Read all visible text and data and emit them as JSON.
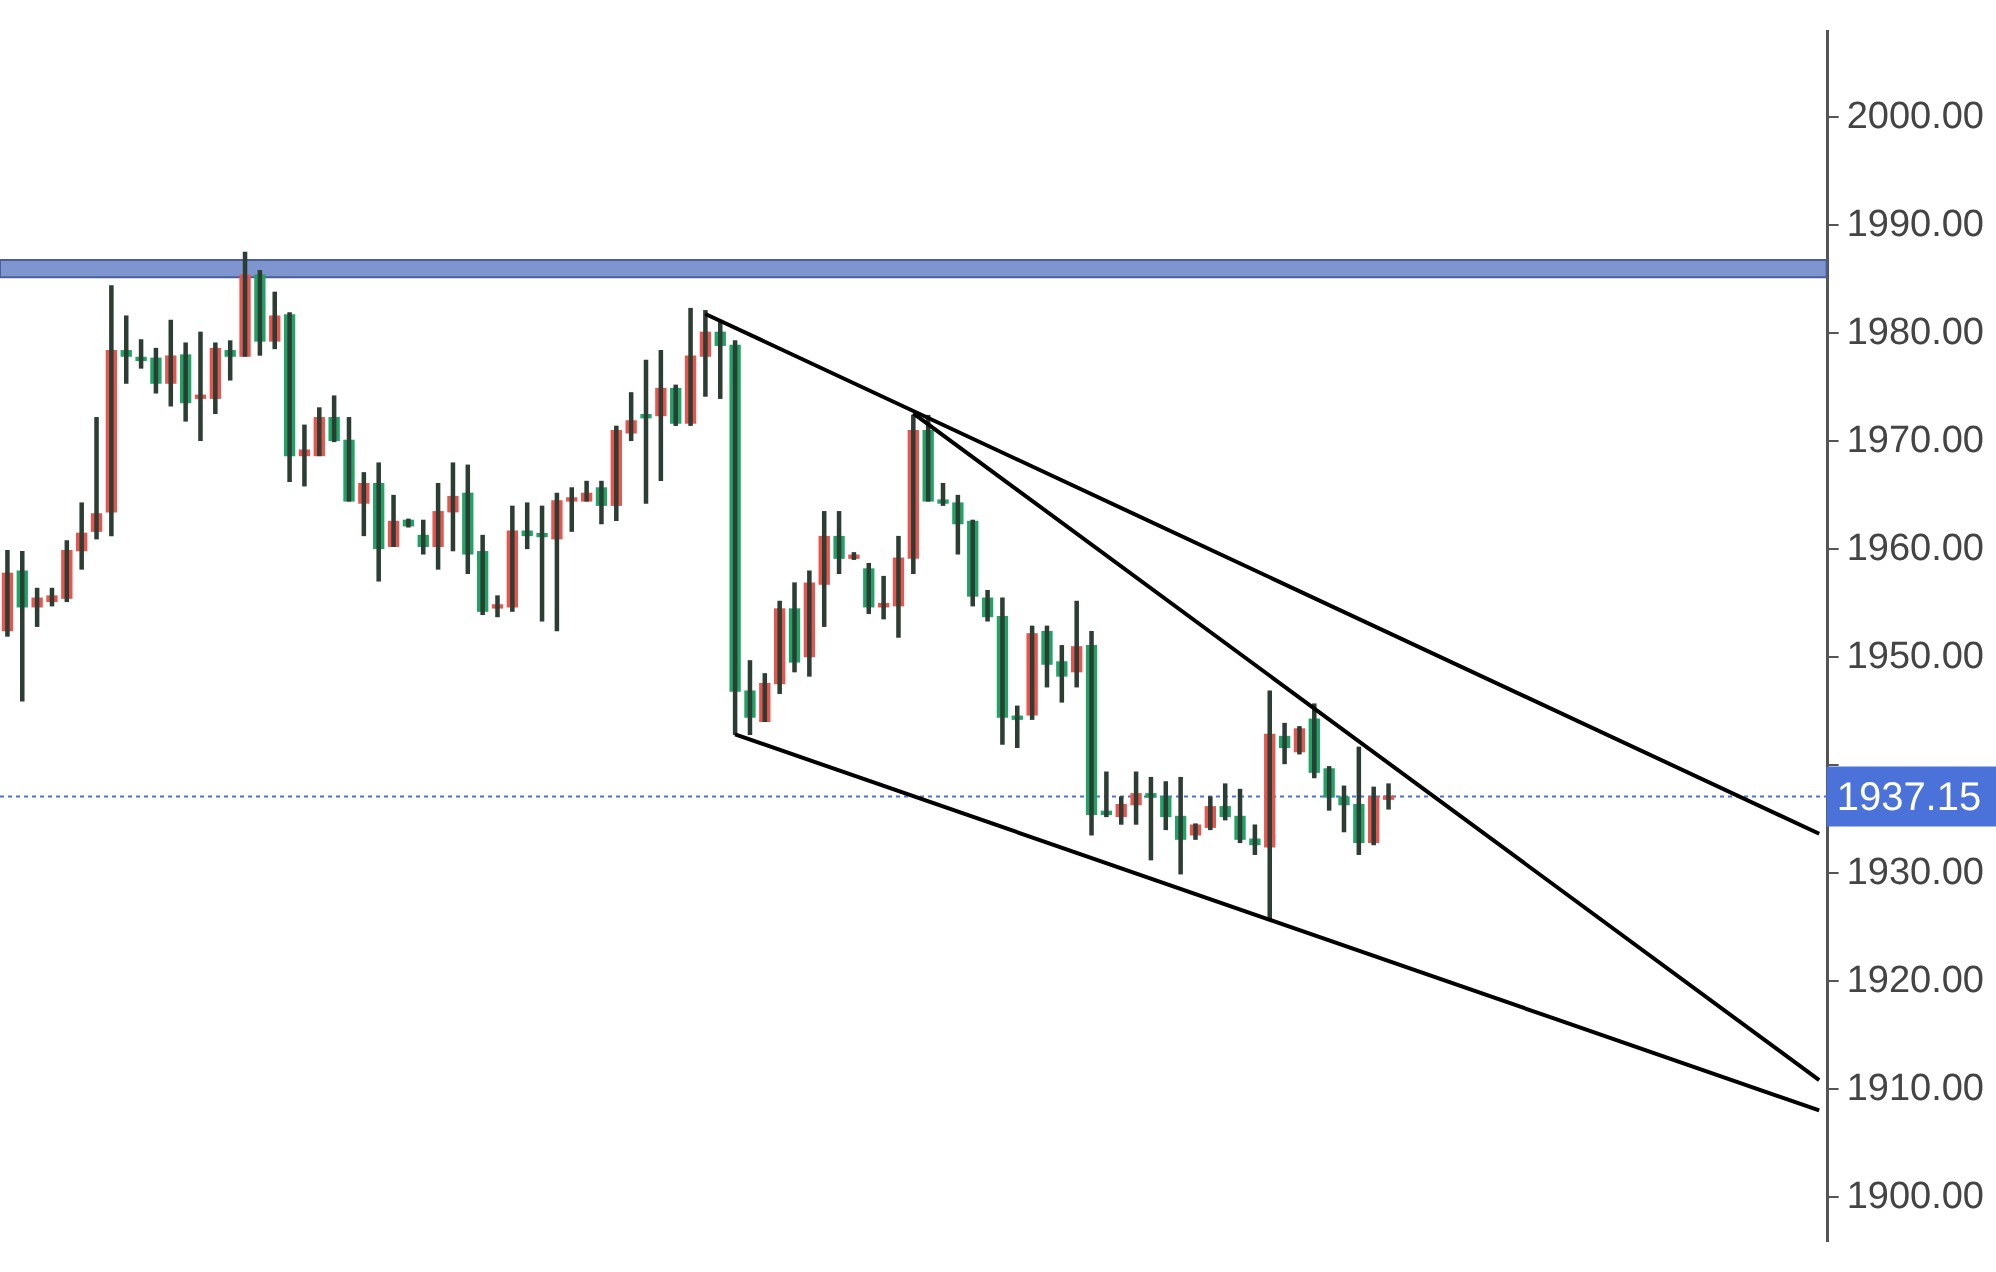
{
  "chart_data": {
    "type": "candlestick",
    "categories": [
      null,
      null,
      null,
      null,
      null,
      null,
      null,
      null,
      null,
      null,
      null,
      null,
      null,
      null,
      null,
      null,
      null,
      null,
      null,
      null,
      null,
      null,
      null,
      null,
      null,
      null,
      null,
      null,
      null,
      null,
      null,
      null,
      null,
      null,
      null,
      null,
      null,
      null,
      null,
      null,
      null,
      null,
      null,
      null,
      null,
      null,
      null,
      null,
      null,
      null,
      null,
      null,
      null,
      null,
      null,
      null,
      null,
      null,
      null,
      null,
      null,
      null,
      null,
      null,
      null,
      null,
      null,
      null,
      null,
      null,
      null,
      null,
      null,
      null,
      null,
      null,
      null,
      null,
      null,
      null,
      null,
      null,
      null,
      null,
      null,
      null,
      null,
      null,
      null,
      null,
      null,
      null,
      null,
      null,
      null,
      null,
      null,
      null,
      null,
      null,
      null,
      null,
      null,
      null,
      null,
      null,
      null,
      null,
      null,
      null,
      null,
      null,
      null,
      null,
      null,
      null,
      null,
      null,
      null,
      null,
      null,
      null,
      null
    ],
    "ohlc": [
      [
        1952.5,
        1959.9,
        1952.0,
        1957.8
      ],
      [
        1958.0,
        1959.8,
        1946.0,
        1954.7
      ],
      [
        1954.7,
        1956.4,
        1952.9,
        1955.5
      ],
      [
        1955.2,
        1956.4,
        1954.8,
        1955.7
      ],
      [
        1955.5,
        1960.8,
        1955.2,
        1959.9
      ],
      [
        1959.9,
        1964.3,
        1958.2,
        1961.5
      ],
      [
        1961.7,
        1972.2,
        1961.0,
        1963.3
      ],
      [
        1963.5,
        1984.4,
        1961.3,
        1978.4
      ],
      [
        1978.4,
        1981.6,
        1975.4,
        1977.9
      ],
      [
        1977.7,
        1979.4,
        1976.8,
        1977.5
      ],
      [
        1977.7,
        1978.6,
        1974.5,
        1975.4
      ],
      [
        1975.4,
        1981.2,
        1973.3,
        1977.9
      ],
      [
        1978.0,
        1979.1,
        1971.9,
        1973.6
      ],
      [
        1974.0,
        1980.1,
        1970.1,
        1974.2
      ],
      [
        1974.0,
        1979.1,
        1972.6,
        1978.6
      ],
      [
        1978.4,
        1979.3,
        1975.7,
        1977.9
      ],
      [
        1977.9,
        1987.5,
        1977.9,
        1985.4
      ],
      [
        1985.4,
        1985.8,
        1978.0,
        1979.3
      ],
      [
        1979.3,
        1983.8,
        1978.6,
        1981.6
      ],
      [
        1981.7,
        1981.9,
        1966.3,
        1968.7
      ],
      [
        1968.7,
        1971.5,
        1965.9,
        1969.2
      ],
      [
        1968.7,
        1973.1,
        1968.7,
        1972.2
      ],
      [
        1972.2,
        1974.2,
        1970.0,
        1970.1
      ],
      [
        1970.1,
        1972.2,
        1964.5,
        1964.5
      ],
      [
        1964.3,
        1967.1,
        1961.3,
        1966.1
      ],
      [
        1966.1,
        1968.0,
        1957.1,
        1960.1
      ],
      [
        1960.3,
        1965.0,
        1960.3,
        1962.6
      ],
      [
        1962.7,
        1962.8,
        1962.1,
        1962.2
      ],
      [
        1961.3,
        1962.7,
        1959.6,
        1960.3
      ],
      [
        1960.3,
        1966.1,
        1958.2,
        1963.5
      ],
      [
        1963.5,
        1968.0,
        1959.9,
        1964.9
      ],
      [
        1965.2,
        1967.8,
        1957.8,
        1959.6
      ],
      [
        1959.8,
        1961.3,
        1954.0,
        1954.3
      ],
      [
        1954.6,
        1955.7,
        1953.8,
        1954.7
      ],
      [
        1954.7,
        1964.0,
        1954.3,
        1961.7
      ],
      [
        1961.7,
        1964.3,
        1960.1,
        1961.3
      ],
      [
        1961.3,
        1964.0,
        1953.4,
        1961.2
      ],
      [
        1961.0,
        1965.2,
        1952.5,
        1964.5
      ],
      [
        1964.5,
        1965.7,
        1961.7,
        1964.7
      ],
      [
        1964.5,
        1966.3,
        1964.5,
        1965.2
      ],
      [
        1965.7,
        1966.3,
        1962.4,
        1964.1
      ],
      [
        1964.1,
        1971.4,
        1962.7,
        1971.0
      ],
      [
        1970.8,
        1974.5,
        1970.1,
        1971.9
      ],
      [
        1972.4,
        1977.5,
        1964.3,
        1972.2
      ],
      [
        1972.4,
        1978.4,
        1966.4,
        1974.9
      ],
      [
        1974.9,
        1975.2,
        1971.5,
        1971.7
      ],
      [
        1971.7,
        1982.3,
        1971.5,
        1977.9
      ],
      [
        1977.9,
        1982.1,
        1974.2,
        1980.1
      ],
      [
        1980.1,
        1981.2,
        1974.0,
        1978.9
      ],
      [
        1978.9,
        1979.3,
        1942.9,
        1946.9
      ],
      [
        1946.9,
        1949.7,
        1942.9,
        1944.5
      ],
      [
        1944.1,
        1948.5,
        1944.1,
        1947.6
      ],
      [
        1947.6,
        1955.2,
        1946.7,
        1954.5
      ],
      [
        1954.5,
        1956.9,
        1948.7,
        1949.6
      ],
      [
        1950.1,
        1958.0,
        1948.3,
        1956.9
      ],
      [
        1956.8,
        1963.5,
        1952.9,
        1961.2
      ],
      [
        1961.2,
        1963.5,
        1957.8,
        1959.2
      ],
      [
        1959.2,
        1959.7,
        1959.1,
        1959.4
      ],
      [
        1958.2,
        1958.7,
        1954.1,
        1954.7
      ],
      [
        1954.7,
        1957.5,
        1953.6,
        1955.0
      ],
      [
        1954.8,
        1961.2,
        1951.9,
        1959.2
      ],
      [
        1959.2,
        1972.4,
        1957.8,
        1971.0
      ],
      [
        1971.0,
        1972.4,
        1964.5,
        1964.5
      ],
      [
        1964.5,
        1966.1,
        1964.1,
        1964.3
      ],
      [
        1964.3,
        1965.0,
        1959.6,
        1962.4
      ],
      [
        1962.6,
        1962.7,
        1954.8,
        1955.7
      ],
      [
        1955.5,
        1956.2,
        1953.4,
        1953.8
      ],
      [
        1953.8,
        1955.5,
        1942.0,
        1944.5
      ],
      [
        1944.5,
        1945.5,
        1941.7,
        1944.3
      ],
      [
        1944.7,
        1952.9,
        1944.3,
        1952.2
      ],
      [
        1952.4,
        1952.9,
        1947.3,
        1949.4
      ],
      [
        1949.6,
        1951.1,
        1945.9,
        1948.3
      ],
      [
        1948.7,
        1955.2,
        1947.3,
        1951.0
      ],
      [
        1951.1,
        1952.4,
        1933.6,
        1935.5
      ],
      [
        1935.7,
        1939.4,
        1935.3,
        1935.5
      ],
      [
        1935.3,
        1937.1,
        1934.6,
        1936.4
      ],
      [
        1936.4,
        1939.4,
        1934.6,
        1937.4
      ],
      [
        1937.4,
        1938.9,
        1931.3,
        1937.1
      ],
      [
        1937.1,
        1938.5,
        1934.1,
        1935.3
      ],
      [
        1935.3,
        1938.9,
        1930.0,
        1933.2
      ],
      [
        1933.6,
        1934.6,
        1933.2,
        1934.5
      ],
      [
        1934.3,
        1937.1,
        1934.1,
        1936.2
      ],
      [
        1936.2,
        1938.3,
        1935.0,
        1935.3
      ],
      [
        1935.3,
        1937.8,
        1932.9,
        1933.2
      ],
      [
        1933.2,
        1934.5,
        1931.8,
        1932.7
      ],
      [
        1932.5,
        1946.9,
        1925.8,
        1942.9
      ],
      [
        1942.7,
        1943.9,
        1940.2,
        1941.7
      ],
      [
        1941.3,
        1943.6,
        1941.1,
        1943.4
      ],
      [
        1944.3,
        1945.7,
        1938.9,
        1939.4
      ],
      [
        1939.7,
        1939.9,
        1935.9,
        1937.1
      ],
      [
        1937.1,
        1938.1,
        1933.9,
        1936.4
      ],
      [
        1936.4,
        1941.7,
        1931.8,
        1932.9
      ],
      [
        1932.9,
        1938.0,
        1932.7,
        1937.1
      ],
      [
        1936.9,
        1938.3,
        1936.0,
        1937.15
      ],
      null,
      null,
      null,
      null,
      null,
      null,
      null,
      null,
      null,
      null,
      null,
      null,
      null,
      null,
      null,
      null,
      null,
      null,
      null,
      null,
      null,
      null,
      null,
      null,
      null,
      null,
      null,
      null,
      null
    ],
    "colors": [
      "#e8554e",
      "#21a366",
      "#e8554e",
      "#e8554e",
      "#e8554e",
      "#e8554e",
      "#e8554e",
      "#e8554e",
      "#21a366",
      "#21a366",
      "#21a366",
      "#e8554e",
      "#21a366",
      "#e8554e",
      "#e8554e",
      "#21a366",
      "#e8554e",
      "#21a366",
      "#e8554e",
      "#21a366",
      "#e8554e",
      "#e8554e",
      "#21a366",
      "#21a366",
      "#e8554e",
      "#21a366",
      "#e8554e",
      "#21a366",
      "#21a366",
      "#e8554e",
      "#e8554e",
      "#21a366",
      "#21a366",
      "#e8554e",
      "#e8554e",
      "#21a366",
      "#21a366",
      "#e8554e",
      "#e8554e",
      "#e8554e",
      "#21a366",
      "#e8554e",
      "#e8554e",
      "#21a366",
      "#e8554e",
      "#21a366",
      "#e8554e",
      "#e8554e",
      "#21a366",
      "#21a366",
      "#21a366",
      "#e8554e",
      "#e8554e",
      "#21a366",
      "#e8554e",
      "#e8554e",
      "#21a366",
      "#e8554e",
      "#21a366",
      "#e8554e",
      "#e8554e",
      "#e8554e",
      "#21a366",
      "#21a366",
      "#21a366",
      "#21a366",
      "#21a366",
      "#21a366",
      "#21a366",
      "#e8554e",
      "#21a366",
      "#21a366",
      "#e8554e",
      "#21a366",
      "#21a366",
      "#e8554e",
      "#e8554e",
      "#21a366",
      "#21a366",
      "#21a366",
      "#e8554e",
      "#e8554e",
      "#21a366",
      "#21a366",
      "#21a366",
      "#e8554e",
      "#21a366",
      "#e8554e",
      "#21a366",
      "#21a366",
      "#21a366",
      "#21a366",
      "#e8554e",
      "#e8554e",
      null,
      null,
      null,
      null,
      null,
      null,
      null,
      null,
      null,
      null,
      null,
      null,
      null,
      null,
      null,
      null,
      null,
      null,
      null,
      null,
      null,
      null,
      null,
      null,
      null,
      null,
      null,
      null,
      null
    ],
    "series": [
      {
        "type": "line",
        "values": [
          null,
          null,
          null,
          null,
          null,
          null,
          null,
          null,
          null,
          null,
          null,
          null,
          null,
          null,
          null,
          null,
          null,
          null,
          null,
          null,
          null,
          null,
          null,
          null,
          null,
          null,
          null,
          null,
          null,
          null,
          null,
          null,
          null,
          null,
          null,
          null,
          null,
          null,
          null,
          null,
          null,
          null,
          null,
          null,
          null,
          null,
          null,
          1981.8,
          null,
          null,
          null,
          null,
          null,
          null,
          null,
          null,
          null,
          null,
          null,
          null,
          null,
          null,
          null,
          null,
          null,
          null,
          null,
          null,
          null,
          null,
          null,
          null,
          null,
          null,
          null,
          null,
          null,
          null,
          null,
          null,
          null,
          null,
          null,
          null,
          null,
          null,
          null,
          null,
          null,
          null,
          null,
          null,
          null,
          null,
          null,
          null,
          null,
          null,
          null,
          null,
          null,
          null,
          null,
          null,
          null,
          null,
          null,
          null,
          null,
          null,
          null,
          null,
          null,
          null,
          null,
          null,
          null,
          null,
          null,
          null,
          null,
          null,
          1933.7
        ],
        "color": "#000000"
      },
      {
        "type": "line",
        "values": [
          null,
          null,
          null,
          null,
          null,
          null,
          null,
          null,
          null,
          null,
          null,
          null,
          null,
          null,
          null,
          null,
          null,
          null,
          null,
          null,
          null,
          null,
          null,
          null,
          null,
          null,
          null,
          null,
          null,
          null,
          null,
          null,
          null,
          null,
          null,
          null,
          null,
          null,
          null,
          null,
          null,
          null,
          null,
          null,
          null,
          null,
          null,
          null,
          null,
          null,
          null,
          null,
          null,
          null,
          null,
          null,
          null,
          null,
          null,
          null,
          null,
          1972.6,
          null,
          null,
          null,
          null,
          null,
          null,
          null,
          null,
          null,
          null,
          null,
          null,
          null,
          null,
          null,
          null,
          null,
          null,
          null,
          null,
          null,
          null,
          null,
          null,
          null,
          null,
          null,
          null,
          null,
          null,
          null,
          null,
          null,
          null,
          null,
          null,
          null,
          null,
          null,
          null,
          null,
          null,
          null,
          null,
          null,
          null,
          null,
          null,
          null,
          null,
          null,
          null,
          null,
          null,
          null,
          null,
          null,
          null,
          null,
          null,
          1910.9
        ],
        "color": "#000000"
      },
      {
        "type": "line",
        "values": [
          null,
          null,
          null,
          null,
          null,
          null,
          null,
          null,
          null,
          null,
          null,
          null,
          null,
          null,
          null,
          null,
          null,
          null,
          null,
          null,
          null,
          null,
          null,
          null,
          null,
          null,
          null,
          null,
          null,
          null,
          null,
          null,
          null,
          null,
          null,
          null,
          null,
          null,
          null,
          null,
          null,
          null,
          null,
          null,
          null,
          null,
          null,
          null,
          null,
          1942.9,
          null,
          null,
          null,
          null,
          null,
          null,
          null,
          null,
          null,
          null,
          null,
          null,
          null,
          null,
          null,
          null,
          null,
          null,
          null,
          null,
          null,
          null,
          null,
          null,
          null,
          null,
          null,
          null,
          null,
          null,
          null,
          null,
          null,
          null,
          null,
          null,
          null,
          null,
          null,
          null,
          null,
          null,
          null,
          null,
          null,
          null,
          null,
          null,
          null,
          null,
          null,
          null,
          null,
          null,
          null,
          null,
          null,
          null,
          null,
          null,
          null,
          null,
          null,
          null,
          null,
          null,
          null,
          null,
          null,
          null,
          null,
          null,
          1908.1
        ],
        "color": "#000000"
      }
    ],
    "bands": [
      {
        "axis": "y",
        "from": 1985.2,
        "to": 1986.8,
        "color": "#7f95d0"
      }
    ],
    "ref_lines": [
      {
        "axis": "y",
        "value": 1937.15,
        "label": "1937.15",
        "color": "#4a72d8",
        "line_style": "dotted"
      }
    ],
    "ylim": [
      1896,
      2008
    ],
    "yticks": [
      {
        "value": 1900,
        "label": "1900.00"
      },
      {
        "value": 1910,
        "label": "1910.00"
      },
      {
        "value": 1920,
        "label": "1920.00"
      },
      {
        "value": 1930,
        "label": "1930.00"
      },
      {
        "value": 1940,
        "label": null
      },
      {
        "value": 1950,
        "label": "1950.00"
      },
      {
        "value": 1960,
        "label": "1960.00"
      },
      {
        "value": 1970,
        "label": "1970.00"
      },
      {
        "value": 1980,
        "label": "1980.00"
      },
      {
        "value": 1990,
        "label": "1990.00"
      },
      {
        "value": 2000,
        "label": "2000.00"
      }
    ],
    "tick_labels": "y",
    "grid": false,
    "legend": false
  }
}
